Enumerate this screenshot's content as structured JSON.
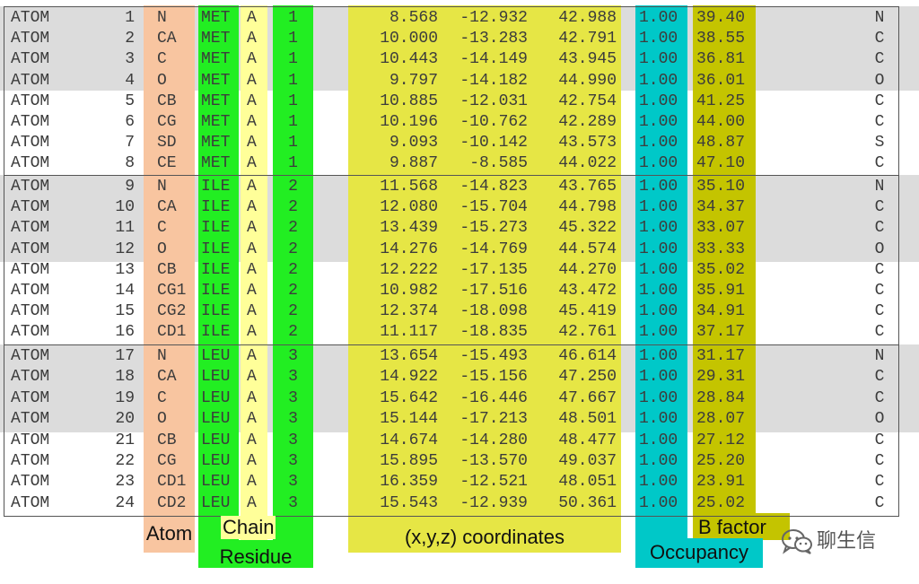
{
  "pdb_records": [
    {
      "record": "ATOM",
      "serial": "1",
      "atom": "N",
      "residue": "MET",
      "chain": "A",
      "resnum": "1",
      "x": "8.568",
      "y": "-12.932",
      "z": "42.988",
      "occupancy": "1.00",
      "bfactor": "39.40",
      "element": "N"
    },
    {
      "record": "ATOM",
      "serial": "2",
      "atom": "CA",
      "residue": "MET",
      "chain": "A",
      "resnum": "1",
      "x": "10.000",
      "y": "-13.283",
      "z": "42.791",
      "occupancy": "1.00",
      "bfactor": "38.55",
      "element": "C"
    },
    {
      "record": "ATOM",
      "serial": "3",
      "atom": "C",
      "residue": "MET",
      "chain": "A",
      "resnum": "1",
      "x": "10.443",
      "y": "-14.149",
      "z": "43.945",
      "occupancy": "1.00",
      "bfactor": "36.81",
      "element": "C"
    },
    {
      "record": "ATOM",
      "serial": "4",
      "atom": "O",
      "residue": "MET",
      "chain": "A",
      "resnum": "1",
      "x": "9.797",
      "y": "-14.182",
      "z": "44.990",
      "occupancy": "1.00",
      "bfactor": "36.01",
      "element": "O"
    },
    {
      "record": "ATOM",
      "serial": "5",
      "atom": "CB",
      "residue": "MET",
      "chain": "A",
      "resnum": "1",
      "x": "10.885",
      "y": "-12.031",
      "z": "42.754",
      "occupancy": "1.00",
      "bfactor": "41.25",
      "element": "C"
    },
    {
      "record": "ATOM",
      "serial": "6",
      "atom": "CG",
      "residue": "MET",
      "chain": "A",
      "resnum": "1",
      "x": "10.196",
      "y": "-10.762",
      "z": "42.289",
      "occupancy": "1.00",
      "bfactor": "44.00",
      "element": "C"
    },
    {
      "record": "ATOM",
      "serial": "7",
      "atom": "SD",
      "residue": "MET",
      "chain": "A",
      "resnum": "1",
      "x": "9.093",
      "y": "-10.142",
      "z": "43.573",
      "occupancy": "1.00",
      "bfactor": "48.87",
      "element": "S"
    },
    {
      "record": "ATOM",
      "serial": "8",
      "atom": "CE",
      "residue": "MET",
      "chain": "A",
      "resnum": "1",
      "x": "9.887",
      "y": "-8.585",
      "z": "44.022",
      "occupancy": "1.00",
      "bfactor": "47.10",
      "element": "C"
    },
    {
      "record": "ATOM",
      "serial": "9",
      "atom": "N",
      "residue": "ILE",
      "chain": "A",
      "resnum": "2",
      "x": "11.568",
      "y": "-14.823",
      "z": "43.765",
      "occupancy": "1.00",
      "bfactor": "35.10",
      "element": "N"
    },
    {
      "record": "ATOM",
      "serial": "10",
      "atom": "CA",
      "residue": "ILE",
      "chain": "A",
      "resnum": "2",
      "x": "12.080",
      "y": "-15.704",
      "z": "44.798",
      "occupancy": "1.00",
      "bfactor": "34.37",
      "element": "C"
    },
    {
      "record": "ATOM",
      "serial": "11",
      "atom": "C",
      "residue": "ILE",
      "chain": "A",
      "resnum": "2",
      "x": "13.439",
      "y": "-15.273",
      "z": "45.322",
      "occupancy": "1.00",
      "bfactor": "33.07",
      "element": "C"
    },
    {
      "record": "ATOM",
      "serial": "12",
      "atom": "O",
      "residue": "ILE",
      "chain": "A",
      "resnum": "2",
      "x": "14.276",
      "y": "-14.769",
      "z": "44.574",
      "occupancy": "1.00",
      "bfactor": "33.33",
      "element": "O"
    },
    {
      "record": "ATOM",
      "serial": "13",
      "atom": "CB",
      "residue": "ILE",
      "chain": "A",
      "resnum": "2",
      "x": "12.222",
      "y": "-17.135",
      "z": "44.270",
      "occupancy": "1.00",
      "bfactor": "35.02",
      "element": "C"
    },
    {
      "record": "ATOM",
      "serial": "14",
      "atom": "CG1",
      "residue": "ILE",
      "chain": "A",
      "resnum": "2",
      "x": "10.982",
      "y": "-17.516",
      "z": "43.472",
      "occupancy": "1.00",
      "bfactor": "35.91",
      "element": "C"
    },
    {
      "record": "ATOM",
      "serial": "15",
      "atom": "CG2",
      "residue": "ILE",
      "chain": "A",
      "resnum": "2",
      "x": "12.374",
      "y": "-18.098",
      "z": "45.419",
      "occupancy": "1.00",
      "bfactor": "34.91",
      "element": "C"
    },
    {
      "record": "ATOM",
      "serial": "16",
      "atom": "CD1",
      "residue": "ILE",
      "chain": "A",
      "resnum": "2",
      "x": "11.117",
      "y": "-18.835",
      "z": "42.761",
      "occupancy": "1.00",
      "bfactor": "37.17",
      "element": "C"
    },
    {
      "record": "ATOM",
      "serial": "17",
      "atom": "N",
      "residue": "LEU",
      "chain": "A",
      "resnum": "3",
      "x": "13.654",
      "y": "-15.493",
      "z": "46.614",
      "occupancy": "1.00",
      "bfactor": "31.17",
      "element": "N"
    },
    {
      "record": "ATOM",
      "serial": "18",
      "atom": "CA",
      "residue": "LEU",
      "chain": "A",
      "resnum": "3",
      "x": "14.922",
      "y": "-15.156",
      "z": "47.250",
      "occupancy": "1.00",
      "bfactor": "29.31",
      "element": "C"
    },
    {
      "record": "ATOM",
      "serial": "19",
      "atom": "C",
      "residue": "LEU",
      "chain": "A",
      "resnum": "3",
      "x": "15.642",
      "y": "-16.446",
      "z": "47.667",
      "occupancy": "1.00",
      "bfactor": "28.84",
      "element": "C"
    },
    {
      "record": "ATOM",
      "serial": "20",
      "atom": "O",
      "residue": "LEU",
      "chain": "A",
      "resnum": "3",
      "x": "15.144",
      "y": "-17.213",
      "z": "48.501",
      "occupancy": "1.00",
      "bfactor": "28.07",
      "element": "O"
    },
    {
      "record": "ATOM",
      "serial": "21",
      "atom": "CB",
      "residue": "LEU",
      "chain": "A",
      "resnum": "3",
      "x": "14.674",
      "y": "-14.280",
      "z": "48.477",
      "occupancy": "1.00",
      "bfactor": "27.12",
      "element": "C"
    },
    {
      "record": "ATOM",
      "serial": "22",
      "atom": "CG",
      "residue": "LEU",
      "chain": "A",
      "resnum": "3",
      "x": "15.895",
      "y": "-13.570",
      "z": "49.037",
      "occupancy": "1.00",
      "bfactor": "25.20",
      "element": "C"
    },
    {
      "record": "ATOM",
      "serial": "23",
      "atom": "CD1",
      "residue": "LEU",
      "chain": "A",
      "resnum": "3",
      "x": "16.359",
      "y": "-12.521",
      "z": "48.051",
      "occupancy": "1.00",
      "bfactor": "23.91",
      "element": "C"
    },
    {
      "record": "ATOM",
      "serial": "24",
      "atom": "CD2",
      "residue": "LEU",
      "chain": "A",
      "resnum": "3",
      "x": "15.543",
      "y": "-12.939",
      "z": "50.361",
      "occupancy": "1.00",
      "bfactor": "25.02",
      "element": "C"
    }
  ],
  "column_labels": {
    "atom": "Atom",
    "chain": "Chain",
    "residue": "Residue",
    "coordinates": "(x,y,z) coordinates",
    "occupancy": "Occupancy",
    "bfactor": "B factor"
  },
  "watermark": {
    "icon": "wechat-icon",
    "text": "聊生信"
  },
  "colors": {
    "atom_column": "#f8c5a0",
    "residue_column": "#22ee22",
    "chain_column": "#ffff99",
    "coordinates_column": "#e6e645",
    "occupancy_column": "#00c8c8",
    "bfactor_column": "#c4c400",
    "row_band_gray": "#dcdcdc"
  }
}
